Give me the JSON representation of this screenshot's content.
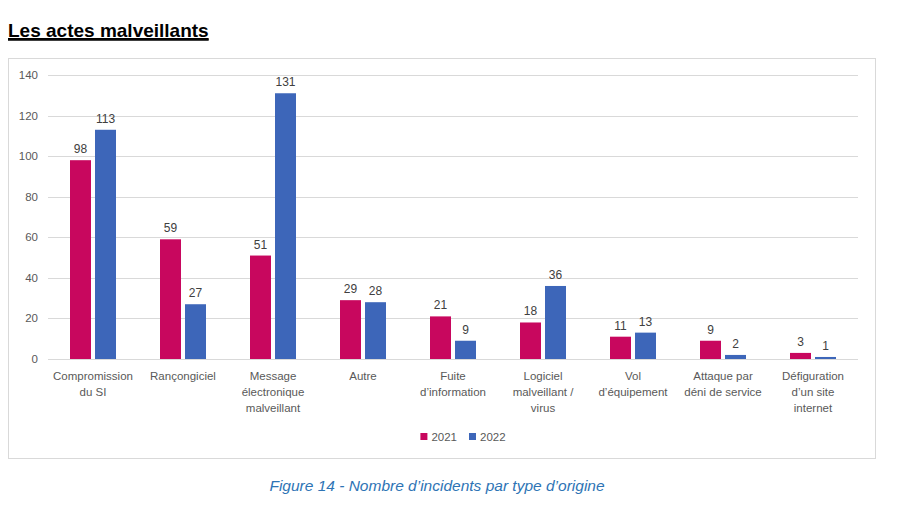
{
  "chart_data": {
    "type": "bar",
    "title": "Les actes malveillants",
    "caption": "Figure 14 - Nombre d’incidents par type d’origine",
    "categories": [
      "Compromission du SI",
      "Rançongiciel",
      "Message électronique malveillant",
      "Autre",
      "Fuite d’information",
      "Logiciel malveillant / virus",
      "Vol d’équipement",
      "Attaque par déni de service",
      "Défiguration d’un site internet"
    ],
    "series": [
      {
        "name": "2021",
        "color": "#c8075e",
        "values": [
          98,
          59,
          51,
          29,
          21,
          18,
          11,
          9,
          3
        ]
      },
      {
        "name": "2022",
        "color": "#3d66b9",
        "values": [
          113,
          27,
          131,
          28,
          9,
          36,
          13,
          2,
          1
        ]
      }
    ],
    "ylim": [
      0,
      140
    ],
    "yticks": [
      0,
      20,
      40,
      60,
      80,
      100,
      120,
      140
    ],
    "grid": true,
    "legend": "bottom",
    "data_labels": true
  }
}
